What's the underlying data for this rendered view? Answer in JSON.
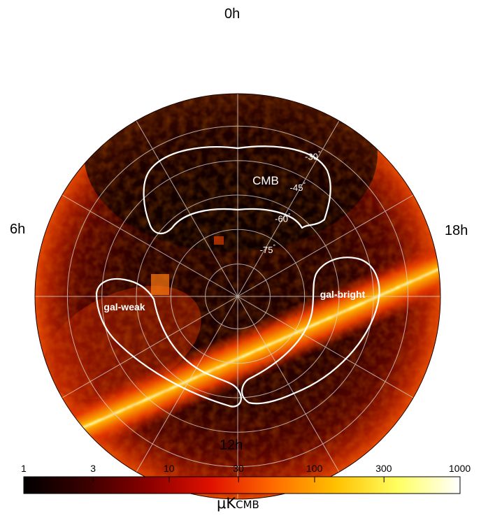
{
  "map": {
    "hour_labels": {
      "top": "0h",
      "left": "6h",
      "right": "18h",
      "bottom": "12h"
    },
    "dec_labels": [
      {
        "text": "-30",
        "unit": "°"
      },
      {
        "text": "-45",
        "unit": "°"
      },
      {
        "text": "-60",
        "unit": "°"
      },
      {
        "text": "-75",
        "unit": "°"
      }
    ],
    "regions": [
      {
        "name": "CMB"
      },
      {
        "name": "gal-bright"
      },
      {
        "name": "gal-weak"
      }
    ]
  },
  "colorbar": {
    "tick_labels": [
      "1",
      "3",
      "10",
      "30",
      "100",
      "300",
      "1000"
    ],
    "unit_main": "μK",
    "unit_sub": "CMB",
    "scale": "log",
    "range": [
      1,
      1000
    ],
    "colors": [
      "#000000",
      "#3a0000",
      "#8b0000",
      "#e01000",
      "#ff6a00",
      "#ffc000",
      "#ffff60",
      "#ffffff"
    ]
  }
}
